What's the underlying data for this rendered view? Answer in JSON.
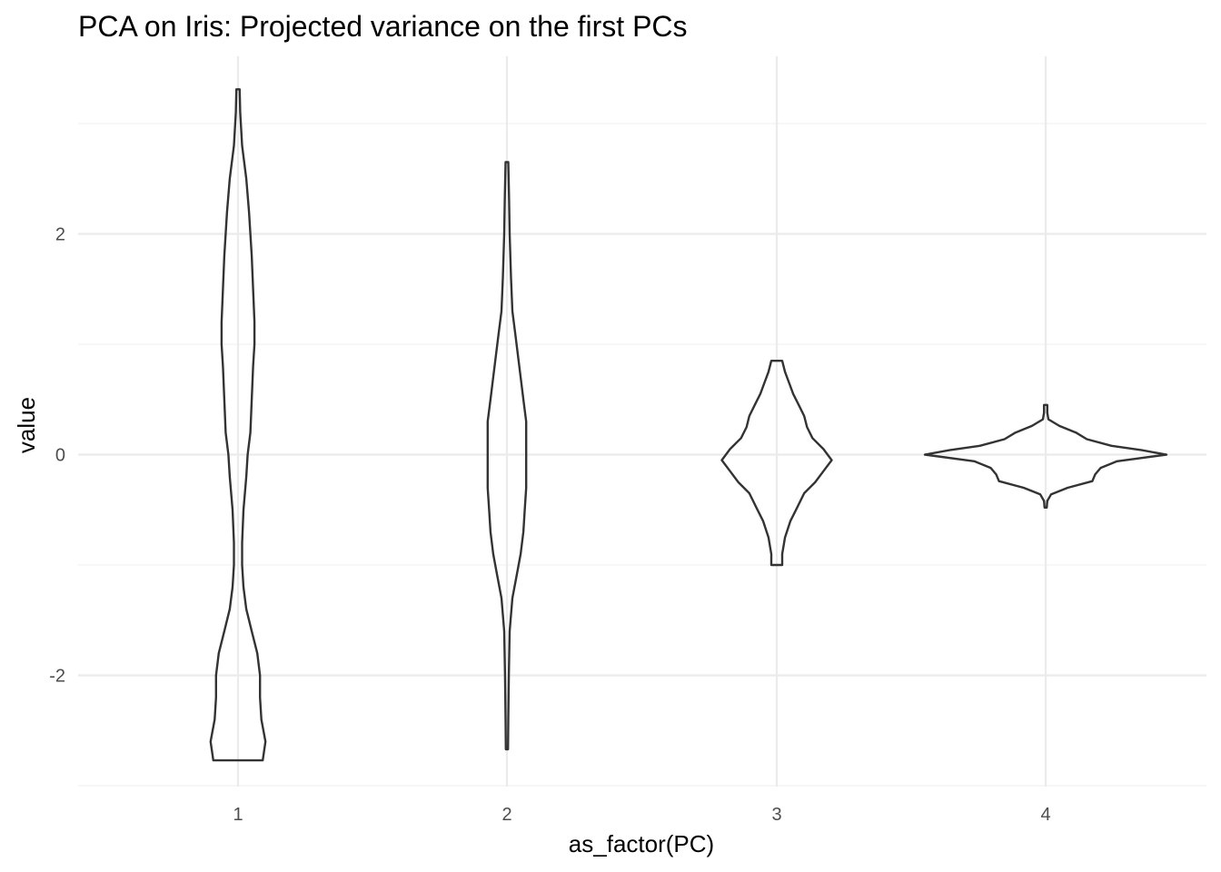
{
  "chart_data": {
    "type": "violin",
    "title": "PCA on Iris: Projected variance on the first PCs",
    "xlabel": "as_factor(PC)",
    "ylabel": "value",
    "categories": [
      "1",
      "2",
      "3",
      "4"
    ],
    "ylim": [
      -3.0,
      3.2
    ],
    "y_ticks": [
      -2,
      0,
      2
    ],
    "y_tick_labels": [
      "-2",
      "0",
      "2"
    ],
    "grid": true,
    "violins": [
      {
        "category": "1",
        "min": -2.77,
        "max": 3.31,
        "profile": [
          [
            -2.77,
            0.09
          ],
          [
            -2.6,
            0.1
          ],
          [
            -2.4,
            0.085
          ],
          [
            -2.2,
            0.08
          ],
          [
            -2.0,
            0.08
          ],
          [
            -1.8,
            0.07
          ],
          [
            -1.6,
            0.05
          ],
          [
            -1.4,
            0.03
          ],
          [
            -1.2,
            0.02
          ],
          [
            -1.0,
            0.015
          ],
          [
            -0.8,
            0.015
          ],
          [
            -0.5,
            0.02
          ],
          [
            -0.2,
            0.03
          ],
          [
            0.0,
            0.035
          ],
          [
            0.2,
            0.045
          ],
          [
            0.5,
            0.05
          ],
          [
            0.8,
            0.055
          ],
          [
            1.0,
            0.06
          ],
          [
            1.2,
            0.06
          ],
          [
            1.5,
            0.055
          ],
          [
            1.8,
            0.05
          ],
          [
            2.0,
            0.045
          ],
          [
            2.2,
            0.04
          ],
          [
            2.5,
            0.03
          ],
          [
            2.8,
            0.015
          ],
          [
            3.1,
            0.008
          ],
          [
            3.31,
            0.006
          ]
        ]
      },
      {
        "category": "2",
        "min": -2.67,
        "max": 2.65,
        "profile": [
          [
            -2.67,
            0.004
          ],
          [
            -2.4,
            0.005
          ],
          [
            -2.0,
            0.007
          ],
          [
            -1.6,
            0.01
          ],
          [
            -1.3,
            0.02
          ],
          [
            -1.1,
            0.035
          ],
          [
            -0.9,
            0.05
          ],
          [
            -0.7,
            0.06
          ],
          [
            -0.5,
            0.065
          ],
          [
            -0.3,
            0.07
          ],
          [
            -0.1,
            0.07
          ],
          [
            0.1,
            0.07
          ],
          [
            0.3,
            0.07
          ],
          [
            0.5,
            0.06
          ],
          [
            0.7,
            0.05
          ],
          [
            0.9,
            0.04
          ],
          [
            1.1,
            0.03
          ],
          [
            1.3,
            0.02
          ],
          [
            1.6,
            0.015
          ],
          [
            2.0,
            0.01
          ],
          [
            2.3,
            0.008
          ],
          [
            2.65,
            0.005
          ]
        ]
      },
      {
        "category": "3",
        "min": -1.0,
        "max": 0.85,
        "profile": [
          [
            -1.0,
            0.02
          ],
          [
            -0.9,
            0.02
          ],
          [
            -0.75,
            0.03
          ],
          [
            -0.6,
            0.05
          ],
          [
            -0.5,
            0.07
          ],
          [
            -0.35,
            0.1
          ],
          [
            -0.25,
            0.14
          ],
          [
            -0.15,
            0.17
          ],
          [
            -0.05,
            0.2
          ],
          [
            0.05,
            0.17
          ],
          [
            0.15,
            0.13
          ],
          [
            0.25,
            0.11
          ],
          [
            0.35,
            0.1
          ],
          [
            0.45,
            0.08
          ],
          [
            0.55,
            0.06
          ],
          [
            0.65,
            0.045
          ],
          [
            0.75,
            0.03
          ],
          [
            0.85,
            0.02
          ]
        ]
      },
      {
        "category": "4",
        "min": -0.48,
        "max": 0.45,
        "profile": [
          [
            -0.48,
            0.004
          ],
          [
            -0.42,
            0.006
          ],
          [
            -0.36,
            0.02
          ],
          [
            -0.3,
            0.08
          ],
          [
            -0.24,
            0.17
          ],
          [
            -0.18,
            0.18
          ],
          [
            -0.12,
            0.2
          ],
          [
            -0.06,
            0.26
          ],
          [
            0.0,
            0.44
          ],
          [
            0.04,
            0.35
          ],
          [
            0.08,
            0.24
          ],
          [
            0.14,
            0.15
          ],
          [
            0.2,
            0.11
          ],
          [
            0.26,
            0.05
          ],
          [
            0.32,
            0.01
          ],
          [
            0.38,
            0.006
          ],
          [
            0.45,
            0.006
          ]
        ]
      }
    ]
  }
}
